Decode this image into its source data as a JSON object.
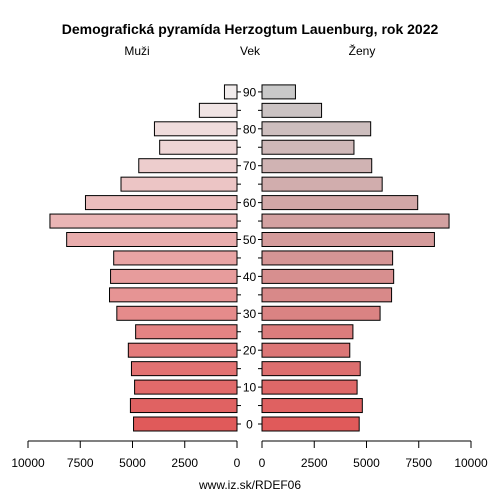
{
  "chart_data": {
    "type": "bar",
    "title": "Demografická pyramída Herzogtum Lauenburg, rok 2022",
    "left_label": "Muži",
    "center_label": "Vek",
    "right_label": "Ženy",
    "footer": "www.iz.sk/RDEF06",
    "age_groups": [
      "0",
      "5",
      "10",
      "15",
      "20",
      "25",
      "30",
      "35",
      "40",
      "45",
      "50",
      "55",
      "60",
      "65",
      "70",
      "75",
      "80",
      "85",
      "90"
    ],
    "age_tick_labels": [
      "0",
      "10",
      "20",
      "30",
      "40",
      "50",
      "60",
      "70",
      "80",
      "90"
    ],
    "series": [
      {
        "name": "Muži",
        "values": [
          4950,
          5100,
          4900,
          5050,
          5200,
          4850,
          5750,
          6100,
          6050,
          5900,
          8150,
          8950,
          7250,
          5550,
          4700,
          3700,
          3950,
          1800,
          600
        ]
      },
      {
        "name": "Ženy",
        "values": [
          4650,
          4800,
          4550,
          4700,
          4200,
          4350,
          5650,
          6200,
          6300,
          6250,
          8250,
          8950,
          7450,
          5750,
          5250,
          4400,
          5200,
          2850,
          1600
        ]
      }
    ],
    "xticks_left": [
      "10000",
      "7500",
      "5000",
      "2500",
      "0"
    ],
    "xticks_right": [
      "0",
      "2500",
      "5000",
      "7500",
      "10000"
    ],
    "xlim": [
      0,
      10000
    ],
    "male_colors": [
      "#e05a5a",
      "#e06262",
      "#e16a6a",
      "#e27272",
      "#e37b7b",
      "#e48383",
      "#e58b8b",
      "#e69494",
      "#e79c9c",
      "#e8a4a4",
      "#e9adad",
      "#eab5b5",
      "#ebbdbd",
      "#ecc5c5",
      "#edcdcd",
      "#eed5d5",
      "#efdcdc",
      "#f0e4e4",
      "#f1ecec"
    ],
    "female_colors": [
      "#e05a5a",
      "#df6161",
      "#de6868",
      "#dd6f6f",
      "#dc7676",
      "#db7c7c",
      "#da8383",
      "#d88989",
      "#d78f8f",
      "#d59595",
      "#d49b9b",
      "#d3a1a1",
      "#d2a7a7",
      "#d1adad",
      "#d0b3b3",
      "#cfb8b8",
      "#cdbebe",
      "#cbc3c3",
      "#c9c9c9"
    ]
  }
}
